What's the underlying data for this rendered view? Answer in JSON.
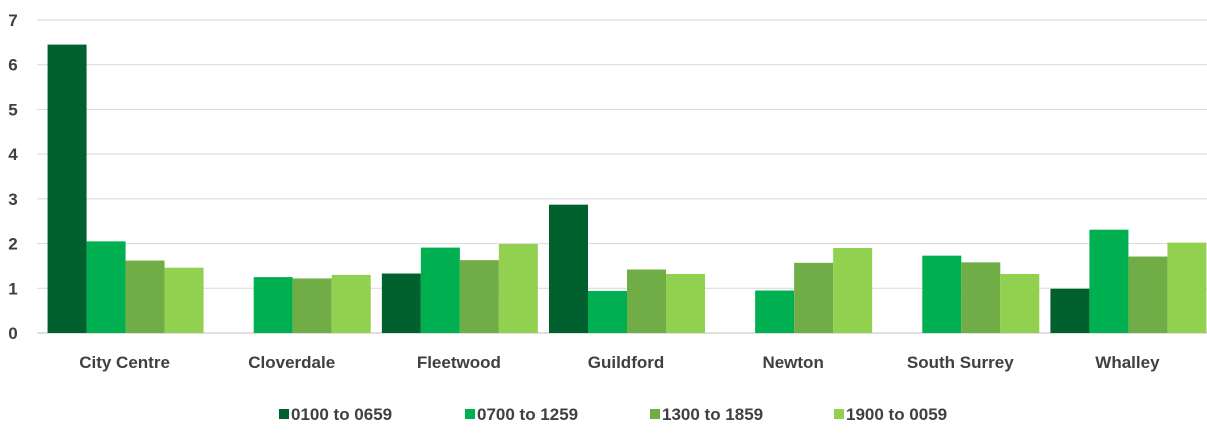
{
  "chart_data": {
    "type": "bar",
    "categories": [
      "City Centre",
      "Cloverdale",
      "Fleetwood",
      "Guildford",
      "Newton",
      "South Surrey",
      "Whalley"
    ],
    "series": [
      {
        "name": "0100 to 0659",
        "color": "#00612E",
        "values": [
          6.45,
          0,
          1.33,
          2.87,
          0,
          0,
          0.99
        ]
      },
      {
        "name": "0700 to 1259",
        "color": "#00B050",
        "values": [
          2.05,
          1.25,
          1.91,
          0.94,
          0.95,
          1.73,
          2.31
        ]
      },
      {
        "name": "1300 to 1859",
        "color": "#70AD47",
        "values": [
          1.62,
          1.22,
          1.63,
          1.42,
          1.57,
          1.58,
          1.71
        ]
      },
      {
        "name": "1900 to 0059",
        "color": "#92D050",
        "values": [
          1.46,
          1.3,
          1.99,
          1.32,
          1.9,
          1.32,
          2.02
        ]
      }
    ],
    "yticks": [
      "0",
      "1",
      "2",
      "3",
      "4",
      "5",
      "6",
      "7"
    ],
    "ylim": [
      0,
      7
    ],
    "grid": true,
    "legend_position": "bottom",
    "title": "",
    "xlabel": "",
    "ylabel": ""
  }
}
